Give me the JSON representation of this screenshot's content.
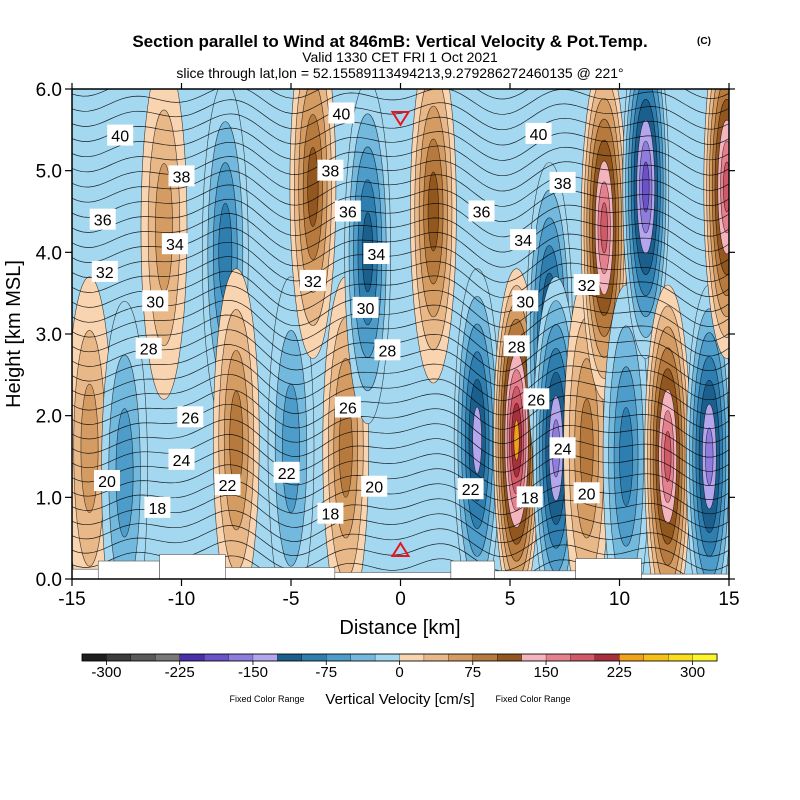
{
  "title": "Section parallel to Wind at 846mB: Vertical Velocity & Pot.Temp.",
  "copyright": "(C)",
  "valid": "Valid 1330 CET FRI 1 Oct 2021",
  "slice": "slice through lat,lon = 52.15589113494213,9.279286272460135 @ 221°",
  "chart_data": {
    "type": "heatmap",
    "xlabel": "Distance [km]",
    "ylabel": "Height [km MSL]",
    "xlim": [
      -15,
      15
    ],
    "ylim": [
      0,
      6
    ],
    "x_ticks": [
      -15,
      -10,
      -5,
      0,
      5,
      10,
      15
    ],
    "x_tick_labels": [
      "-15",
      "-10",
      "-5",
      "0",
      "5",
      "10",
      "15"
    ],
    "y_ticks": [
      0,
      1,
      2,
      3,
      4,
      5,
      6
    ],
    "y_tick_labels": [
      "0.0",
      "1.0",
      "2.0",
      "3.0",
      "4.0",
      "5.0",
      "6.0"
    ],
    "markers": [
      {
        "type": "triangle-down",
        "x": 0,
        "y": 5.65,
        "color": "#e8141e"
      },
      {
        "type": "triangle-up",
        "x": 0,
        "y": 0.35,
        "color": "#e8141e"
      }
    ],
    "colorbar": {
      "title": "Vertical Velocity [cm/s]",
      "note_left": "Fixed Color Range",
      "note_right": "Fixed Color Range",
      "levels": [
        -325,
        -300,
        -275,
        -250,
        -225,
        -200,
        -175,
        -150,
        -125,
        -100,
        -75,
        -50,
        -25,
        0,
        25,
        50,
        75,
        100,
        125,
        150,
        175,
        200,
        225,
        250,
        275,
        300,
        325
      ],
      "tick_values": [
        -300,
        -225,
        -150,
        -75,
        0,
        75,
        150,
        225,
        300
      ],
      "tick_labels": [
        "-300",
        "-225",
        "-150",
        "-75",
        "0",
        "75",
        "150",
        "225",
        "300"
      ],
      "colors": [
        "#1e1e1e",
        "#3c3c3c",
        "#5a5a5a",
        "#787878",
        "#4b2fa8",
        "#6a52c8",
        "#8e7ddc",
        "#b3a6ec",
        "#1b5f8c",
        "#2f7eb0",
        "#4d9cc9",
        "#73b8dd",
        "#a4d8f1",
        "#f9d4b0",
        "#e9b888",
        "#d49c62",
        "#b77a3e",
        "#92561f",
        "#f4b4be",
        "#e5818e",
        "#d05a67",
        "#a8303c",
        "#f0a21a",
        "#f5c119",
        "#f8de1c",
        "#fdf52c"
      ]
    },
    "velocity_cells": [
      {
        "x": -14.2,
        "y": 1.6,
        "value": 60
      },
      {
        "x": -12.6,
        "y": 1.3,
        "value": -40
      },
      {
        "x": -10.8,
        "y": 4.3,
        "value": 60
      },
      {
        "x": -8.0,
        "y": 4.0,
        "value": -75
      },
      {
        "x": -7.5,
        "y": 1.7,
        "value": 75
      },
      {
        "x": -5.0,
        "y": 1.6,
        "value": -50
      },
      {
        "x": -4.0,
        "y": 4.8,
        "value": 90
      },
      {
        "x": -2.5,
        "y": 1.6,
        "value": 80
      },
      {
        "x": -1.5,
        "y": 4.0,
        "value": -110
      },
      {
        "x": 1.5,
        "y": 4.5,
        "value": 110
      },
      {
        "x": 3.5,
        "y": 1.7,
        "value": -120
      },
      {
        "x": 5.3,
        "y": 1.7,
        "value": 230
      },
      {
        "x": 6.8,
        "y": 3.0,
        "value": -130
      },
      {
        "x": 7.1,
        "y": 1.6,
        "value": -160
      },
      {
        "x": 8.5,
        "y": 1.6,
        "value": 75
      },
      {
        "x": 9.3,
        "y": 4.3,
        "value": 170
      },
      {
        "x": 10.3,
        "y": 1.5,
        "value": -80
      },
      {
        "x": 11.2,
        "y": 4.8,
        "value": -170
      },
      {
        "x": 12.2,
        "y": 1.5,
        "value": 175
      },
      {
        "x": 14.1,
        "y": 1.5,
        "value": -150
      },
      {
        "x": 14.9,
        "y": 4.8,
        "value": 175
      }
    ],
    "isentropes": {
      "interval": 1,
      "labels": [
        {
          "text": "40",
          "x": -12.8,
          "y": 5.43
        },
        {
          "text": "38",
          "x": -10.0,
          "y": 4.93
        },
        {
          "text": "36",
          "x": -13.6,
          "y": 4.4
        },
        {
          "text": "34",
          "x": -10.3,
          "y": 4.1
        },
        {
          "text": "32",
          "x": -13.5,
          "y": 3.76
        },
        {
          "text": "30",
          "x": -11.2,
          "y": 3.4
        },
        {
          "text": "28",
          "x": -11.5,
          "y": 2.82
        },
        {
          "text": "26",
          "x": -9.6,
          "y": 1.98
        },
        {
          "text": "24",
          "x": -10.0,
          "y": 1.46
        },
        {
          "text": "20",
          "x": -13.4,
          "y": 1.2
        },
        {
          "text": "18",
          "x": -11.1,
          "y": 0.87
        },
        {
          "text": "22",
          "x": -7.9,
          "y": 1.15
        },
        {
          "text": "22",
          "x": -5.2,
          "y": 1.3
        },
        {
          "text": "32",
          "x": -4.0,
          "y": 3.65
        },
        {
          "text": "38",
          "x": -3.2,
          "y": 5.0
        },
        {
          "text": "40",
          "x": -2.7,
          "y": 5.7
        },
        {
          "text": "36",
          "x": -2.4,
          "y": 4.5
        },
        {
          "text": "34",
          "x": -1.1,
          "y": 3.98
        },
        {
          "text": "30",
          "x": -1.6,
          "y": 3.32
        },
        {
          "text": "28",
          "x": -0.6,
          "y": 2.8
        },
        {
          "text": "26",
          "x": -2.4,
          "y": 2.1
        },
        {
          "text": "20",
          "x": -1.2,
          "y": 1.13
        },
        {
          "text": "18",
          "x": -3.2,
          "y": 0.8
        },
        {
          "text": "40",
          "x": 6.3,
          "y": 5.45
        },
        {
          "text": "38",
          "x": 7.4,
          "y": 4.85
        },
        {
          "text": "36",
          "x": 3.7,
          "y": 4.5
        },
        {
          "text": "34",
          "x": 5.6,
          "y": 4.15
        },
        {
          "text": "30",
          "x": 5.7,
          "y": 3.4
        },
        {
          "text": "32",
          "x": 8.5,
          "y": 3.6
        },
        {
          "text": "28",
          "x": 5.3,
          "y": 2.85
        },
        {
          "text": "26",
          "x": 6.2,
          "y": 2.2
        },
        {
          "text": "24",
          "x": 7.4,
          "y": 1.6
        },
        {
          "text": "22",
          "x": 3.2,
          "y": 1.1
        },
        {
          "text": "18",
          "x": 5.9,
          "y": 1.0
        },
        {
          "text": "20",
          "x": 8.5,
          "y": 1.05
        }
      ]
    }
  }
}
